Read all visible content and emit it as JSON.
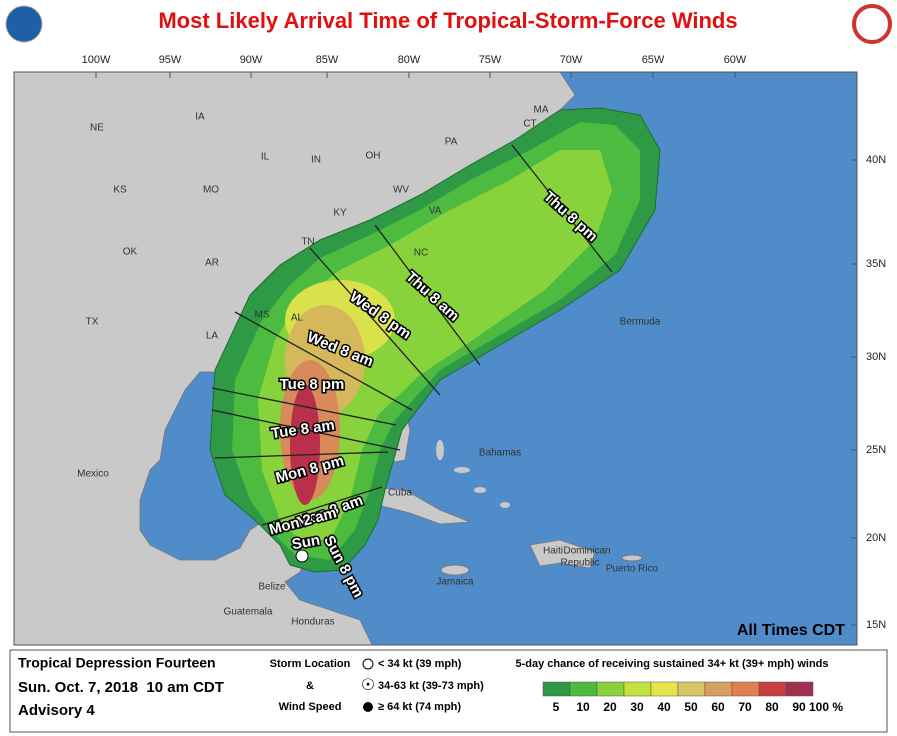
{
  "header": {
    "title": "Most Likely Arrival Time of Tropical-Storm-Force Winds"
  },
  "map": {
    "longitudes": [
      "100W",
      "95W",
      "90W",
      "85W",
      "80W",
      "75W",
      "70W",
      "65W",
      "60W"
    ],
    "latitudes": [
      "40N",
      "35N",
      "30N",
      "25N",
      "20N",
      "15N"
    ],
    "regions": [
      "NE",
      "IA",
      "IL",
      "IN",
      "OH",
      "PA",
      "MA",
      "CT",
      "KS",
      "MO",
      "KY",
      "WV",
      "VA",
      "OK",
      "AR",
      "TN",
      "NC",
      "TX",
      "LA",
      "MS",
      "AL",
      "Mexico",
      "Bermuda",
      "Bahamas",
      "Cuba",
      "Jamaica",
      "Haiti",
      "Dominican",
      "Republic",
      "Puerto Rico",
      "Belize",
      "Guatemala",
      "Honduras"
    ],
    "arrival_times": [
      "Thu 8 pm",
      "Thu 8 am",
      "Wed 8 pm",
      "Wed 8 am",
      "Tue 8 pm",
      "Tue 8 am",
      "Mon 8 pm",
      "Mon 8 am",
      "Mon 2 am",
      "Sun 8 pm",
      "Sun"
    ],
    "note": "All Times CDT"
  },
  "legend": {
    "storm_name": "Tropical Depression Fourteen",
    "issued": "Sun. Oct. 7, 2018  10 am CDT",
    "advisory": "Advisory 4",
    "symbol_heading": [
      "Storm Location",
      "&",
      "Wind Speed"
    ],
    "symbols": [
      "< 34 kt (39 mph)",
      "34-63 kt (39-73 mph)",
      "≥ 64 kt (74 mph)"
    ],
    "scale_title": "5-day chance of receiving sustained 34+ kt (39+ mph) winds",
    "scale_labels": [
      "5",
      "10",
      "20",
      "30",
      "40",
      "50",
      "60",
      "70",
      "80",
      "90",
      "100 %"
    ]
  }
}
